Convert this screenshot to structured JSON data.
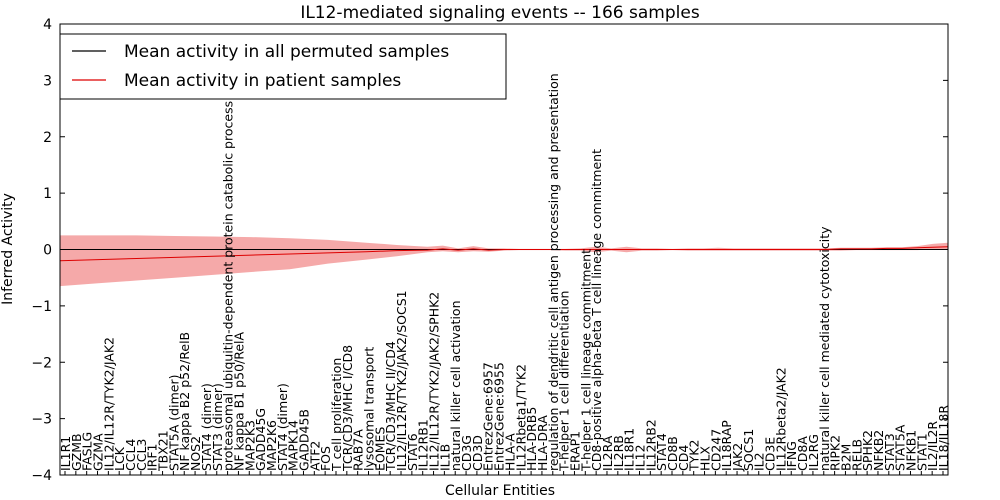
{
  "chart_data": {
    "type": "line",
    "title": "IL12-mediated signaling events -- 166 samples",
    "xlabel": "Cellular Entities",
    "ylabel": "Inferred Activity",
    "ylim": [
      -4,
      4
    ],
    "yticks": [
      -4,
      -3,
      -2,
      -1,
      0,
      1,
      2,
      3,
      4
    ],
    "xlim": [
      0,
      116
    ],
    "legend_location": "top-left",
    "legend": [
      {
        "label": "Mean activity in all permuted samples",
        "color": "#000000"
      },
      {
        "label": "Mean activity in patient samples",
        "color": "#dd0000"
      }
    ],
    "categories": [
      "IL1R1",
      "GZMB",
      "FASLG",
      "GZMA",
      "IL12/IL12R/TYK2/JAK2",
      "LCK",
      "CCL4",
      "CCL3",
      "IRF1",
      "TBX21",
      "STAT5A (dimer)",
      "NF kappa B2 p52/RelB",
      "NOS2",
      "STAT4 (dimer)",
      "STAT3 (dimer)",
      "proteasomal ubiquitin-dependent protein catabolic process",
      "NF kappa B1 p50/RelA",
      "MAP2K3",
      "GADD45G",
      "MAP2K6",
      "STAT4 (dimer)",
      "MAPK14",
      "GADD45B",
      "ATF2",
      "FOS",
      "T cell proliferation",
      "TCR/CD3/MHC I/CD8",
      "RAB7A",
      "lysosomal transport",
      "EOMES",
      "TCR/CD3/MHC II/CD4",
      "IL12/IL12R/TYK2/JAK2/SOCS1",
      "STAT6",
      "IL12RB1",
      "IL12/IL12R/TYK2/JAK2/SPHK2",
      "IL1B",
      "natural killer cell activation",
      "CD3G",
      "CD3D",
      "EntrezGene:6957",
      "EntrezGene:6955",
      "HLA-A",
      "IL12Rbeta1/TYK2",
      "HLA-DRB5",
      "HLA-DRA",
      "regulation of dendritic cell antigen processing and presentation",
      "T-helper 1 cell differentiation",
      "ERAP1",
      "T-helper 1 cell lineage commitment",
      "CD8-positive alpha-beta T cell lineage commitment",
      "IL2RA",
      "IL2RB",
      "IL18R1",
      "IL12",
      "IL12RB2",
      "STAT4",
      "CD8B",
      "CD4",
      "TYK2",
      "HLX",
      "CD247",
      "IL18RAP",
      "JAK2",
      "SOCS1",
      "IL2",
      "CD3E",
      "IL12Rbeta2/JAK2",
      "IFNG",
      "CD8A",
      "IL2RG",
      "natural killer cell mediated cytotoxicity",
      "RIPK2",
      "B2M",
      "RELB",
      "SPHK2",
      "NFKB2",
      "STAT3",
      "STAT5A",
      "NFKB1",
      "STAT1",
      "IL2/IL2R",
      "IL18/IL18R"
    ],
    "series": [
      {
        "name": "Mean activity in all permuted samples",
        "x": [
          0,
          116
        ],
        "values": [
          0,
          0
        ],
        "color": "#000000"
      },
      {
        "name": "Mean activity in patient samples",
        "x": [
          0,
          5,
          10,
          15,
          20,
          25,
          30,
          35,
          40,
          44,
          48,
          50,
          52,
          54,
          56,
          58,
          60,
          62,
          64,
          66,
          68,
          70,
          72,
          74,
          76,
          78,
          80,
          82,
          84,
          86,
          88,
          90,
          92,
          94,
          96,
          98,
          100,
          102,
          104,
          106,
          108,
          110,
          112,
          114,
          116
        ],
        "values": [
          -0.2,
          -0.18,
          -0.16,
          -0.14,
          -0.12,
          -0.1,
          -0.08,
          -0.06,
          -0.04,
          -0.02,
          -0.01,
          0.01,
          -0.01,
          0.01,
          -0.01,
          0,
          0,
          0,
          0,
          0,
          0,
          0,
          0,
          0,
          0,
          0,
          0,
          0,
          0,
          0,
          0,
          0,
          0,
          0,
          0,
          0,
          0,
          0.01,
          0.01,
          0.01,
          0.02,
          0.02,
          0.03,
          0.04,
          0.05
        ],
        "upper": [
          0.25,
          0.25,
          0.25,
          0.24,
          0.23,
          0.22,
          0.2,
          0.17,
          0.12,
          0.08,
          0.05,
          0.07,
          0.02,
          0.06,
          0.02,
          0.02,
          0.01,
          0.01,
          0.01,
          0.01,
          0.02,
          0.05,
          0.02,
          0.05,
          0.02,
          0.02,
          0.01,
          0.02,
          0.02,
          0.03,
          0.02,
          0.02,
          0.02,
          0.02,
          0.02,
          0.02,
          0.02,
          0.03,
          0.03,
          0.03,
          0.04,
          0.04,
          0.06,
          0.1,
          0.12
        ],
        "lower": [
          -0.65,
          -0.6,
          -0.55,
          -0.5,
          -0.45,
          -0.4,
          -0.35,
          -0.25,
          -0.18,
          -0.12,
          -0.05,
          -0.03,
          -0.05,
          -0.03,
          -0.04,
          -0.02,
          -0.01,
          -0.01,
          -0.01,
          -0.02,
          -0.02,
          -0.05,
          -0.02,
          -0.05,
          -0.02,
          -0.02,
          -0.01,
          -0.02,
          -0.02,
          -0.02,
          -0.02,
          -0.02,
          -0.02,
          -0.02,
          -0.02,
          -0.02,
          -0.02,
          -0.02,
          -0.01,
          -0.01,
          -0.01,
          -0.01,
          -0.01,
          0,
          0
        ],
        "color": "#dd0000",
        "band_color": "#f4a0a0"
      }
    ]
  }
}
